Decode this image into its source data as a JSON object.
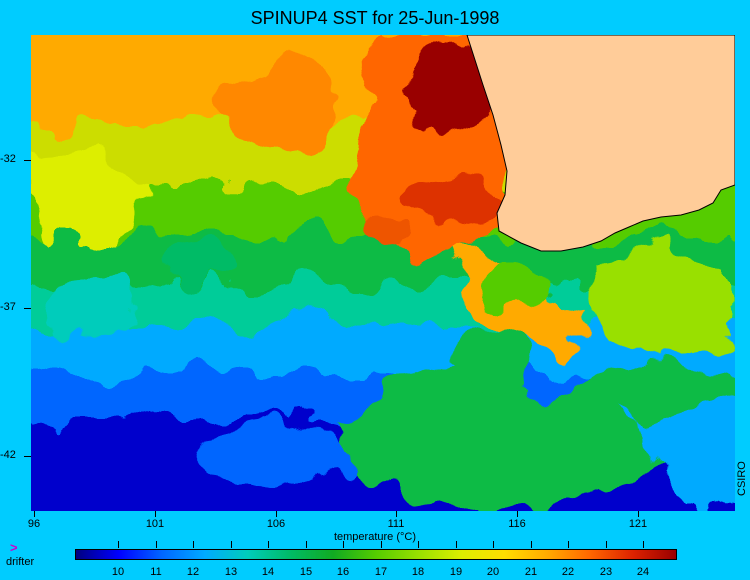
{
  "title": "SPINUP4 SST for 25-Jun-1998",
  "y_axis": {
    "ticks": [
      "-32",
      "-37",
      "-42"
    ]
  },
  "x_axis": {
    "ticks": [
      "96",
      "101",
      "106",
      "111",
      "116",
      "121"
    ]
  },
  "colorbar": {
    "label": "temperature (°C)",
    "ticks": [
      "10",
      "11",
      "12",
      "13",
      "14",
      "15",
      "16",
      "17",
      "18",
      "19",
      "20",
      "21",
      "22",
      "23",
      "24"
    ],
    "colors": [
      "#000080",
      "#0000ff",
      "#0066ff",
      "#00aaff",
      "#00ccbb",
      "#00bb66",
      "#11aa22",
      "#55cc00",
      "#99e000",
      "#ddee00",
      "#ffdd00",
      "#ffaa00",
      "#ff6600",
      "#dd2200",
      "#990000"
    ]
  },
  "legend": {
    "marker": ">",
    "marker_color": "#cc00cc",
    "label": "drifter"
  },
  "credit": "CSIRO",
  "colors": {
    "background": "#00ccff",
    "land": "#ffcc99"
  }
}
